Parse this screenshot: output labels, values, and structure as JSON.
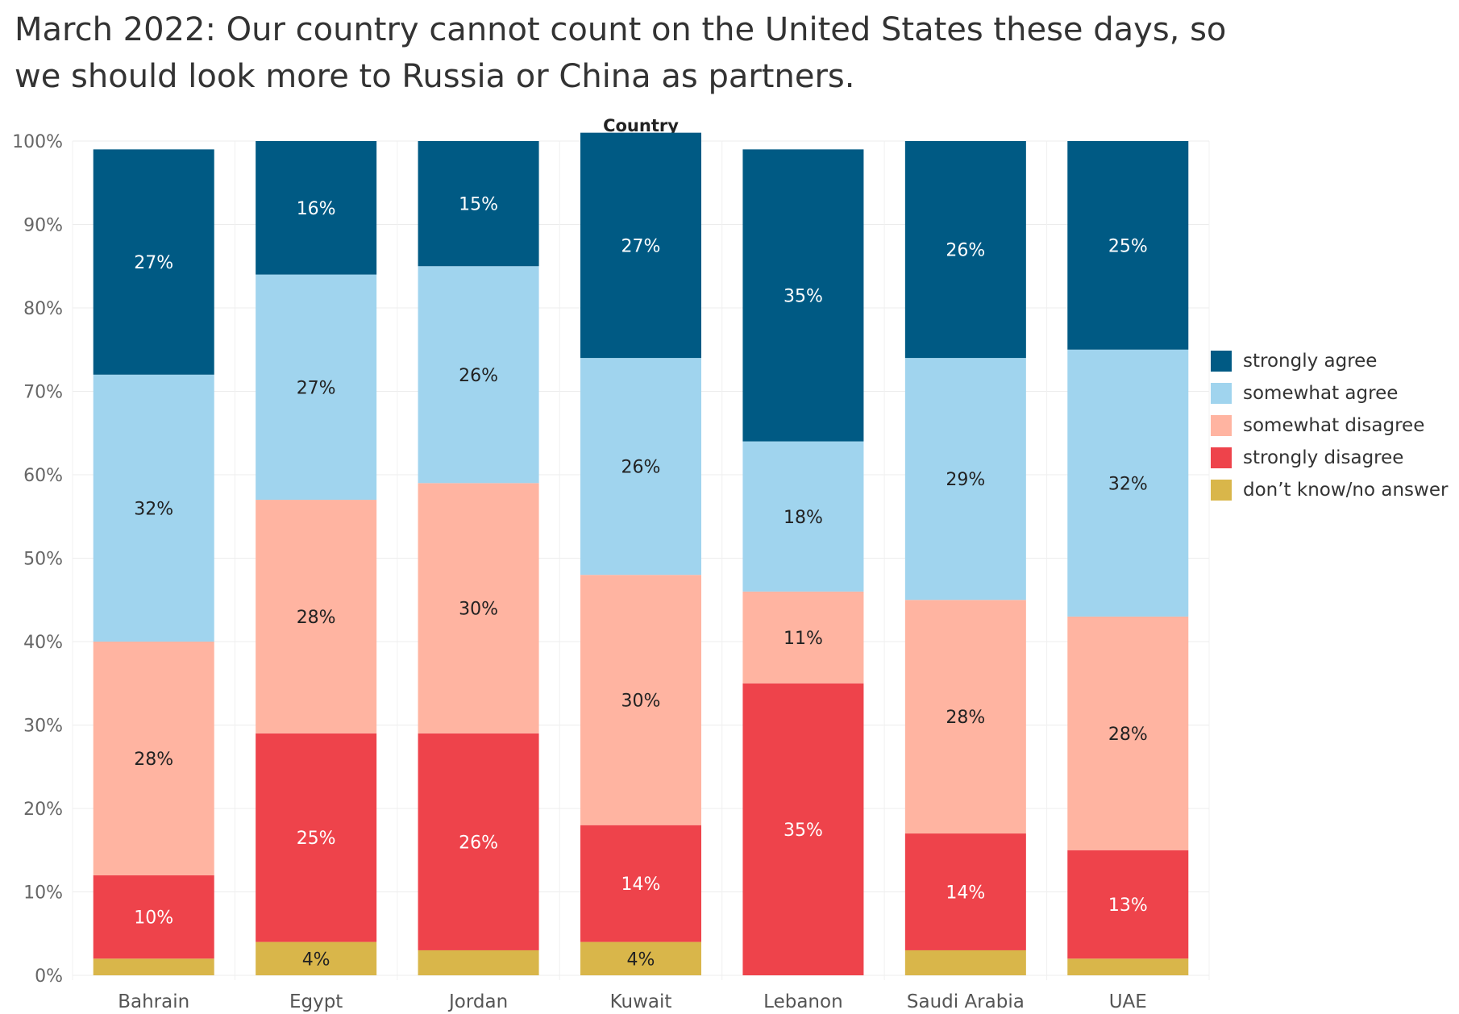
{
  "chart_data": {
    "type": "bar",
    "stacked": true,
    "title": "March 2022: Our country cannot count on the United States these days, so we should look more to Russia or China as partners.",
    "column_header": "Country",
    "categories": [
      "Bahrain",
      "Egypt",
      "Jordan",
      "Kuwait",
      "Lebanon",
      "Saudi Arabia",
      "UAE"
    ],
    "y_ticks": [
      "0%",
      "10%",
      "20%",
      "30%",
      "40%",
      "50%",
      "60%",
      "70%",
      "80%",
      "90%",
      "100%"
    ],
    "ylim": [
      0,
      100
    ],
    "grid": true,
    "legend_position": "right",
    "series": [
      {
        "name": "don’t know/no answer",
        "color": "#D9B64A",
        "label_color": "#222222",
        "values": [
          2,
          4,
          3,
          4,
          0,
          3,
          2
        ],
        "labels": [
          "",
          "4%",
          "",
          "4%",
          "",
          "",
          ""
        ]
      },
      {
        "name": "strongly disagree",
        "color": "#EE434B",
        "label_color": "#ffffff",
        "values": [
          10,
          25,
          26,
          14,
          35,
          14,
          13
        ],
        "labels": [
          "10%",
          "25%",
          "26%",
          "14%",
          "35%",
          "14%",
          "13%"
        ]
      },
      {
        "name": "somewhat disagree",
        "color": "#FFB4A1",
        "label_color": "#222222",
        "values": [
          28,
          28,
          30,
          30,
          11,
          28,
          28
        ],
        "labels": [
          "28%",
          "28%",
          "30%",
          "30%",
          "11%",
          "28%",
          "28%"
        ]
      },
      {
        "name": "somewhat agree",
        "color": "#A0D4EE",
        "label_color": "#222222",
        "values": [
          32,
          27,
          26,
          26,
          18,
          29,
          32
        ],
        "labels": [
          "32%",
          "27%",
          "26%",
          "26%",
          "18%",
          "29%",
          "32%"
        ]
      },
      {
        "name": "strongly agree",
        "color": "#005A84",
        "label_color": "#ffffff",
        "values": [
          27,
          16,
          15,
          27,
          35,
          26,
          25
        ],
        "labels": [
          "27%",
          "16%",
          "15%",
          "27%",
          "35%",
          "26%",
          "25%"
        ]
      }
    ],
    "legend": [
      {
        "name": "strongly agree",
        "color": "#005A84"
      },
      {
        "name": "somewhat agree",
        "color": "#A0D4EE"
      },
      {
        "name": "somewhat disagree",
        "color": "#FFB4A1"
      },
      {
        "name": "strongly disagree",
        "color": "#EE434B"
      },
      {
        "name": "don’t know/no answer",
        "color": "#D9B64A"
      }
    ]
  }
}
